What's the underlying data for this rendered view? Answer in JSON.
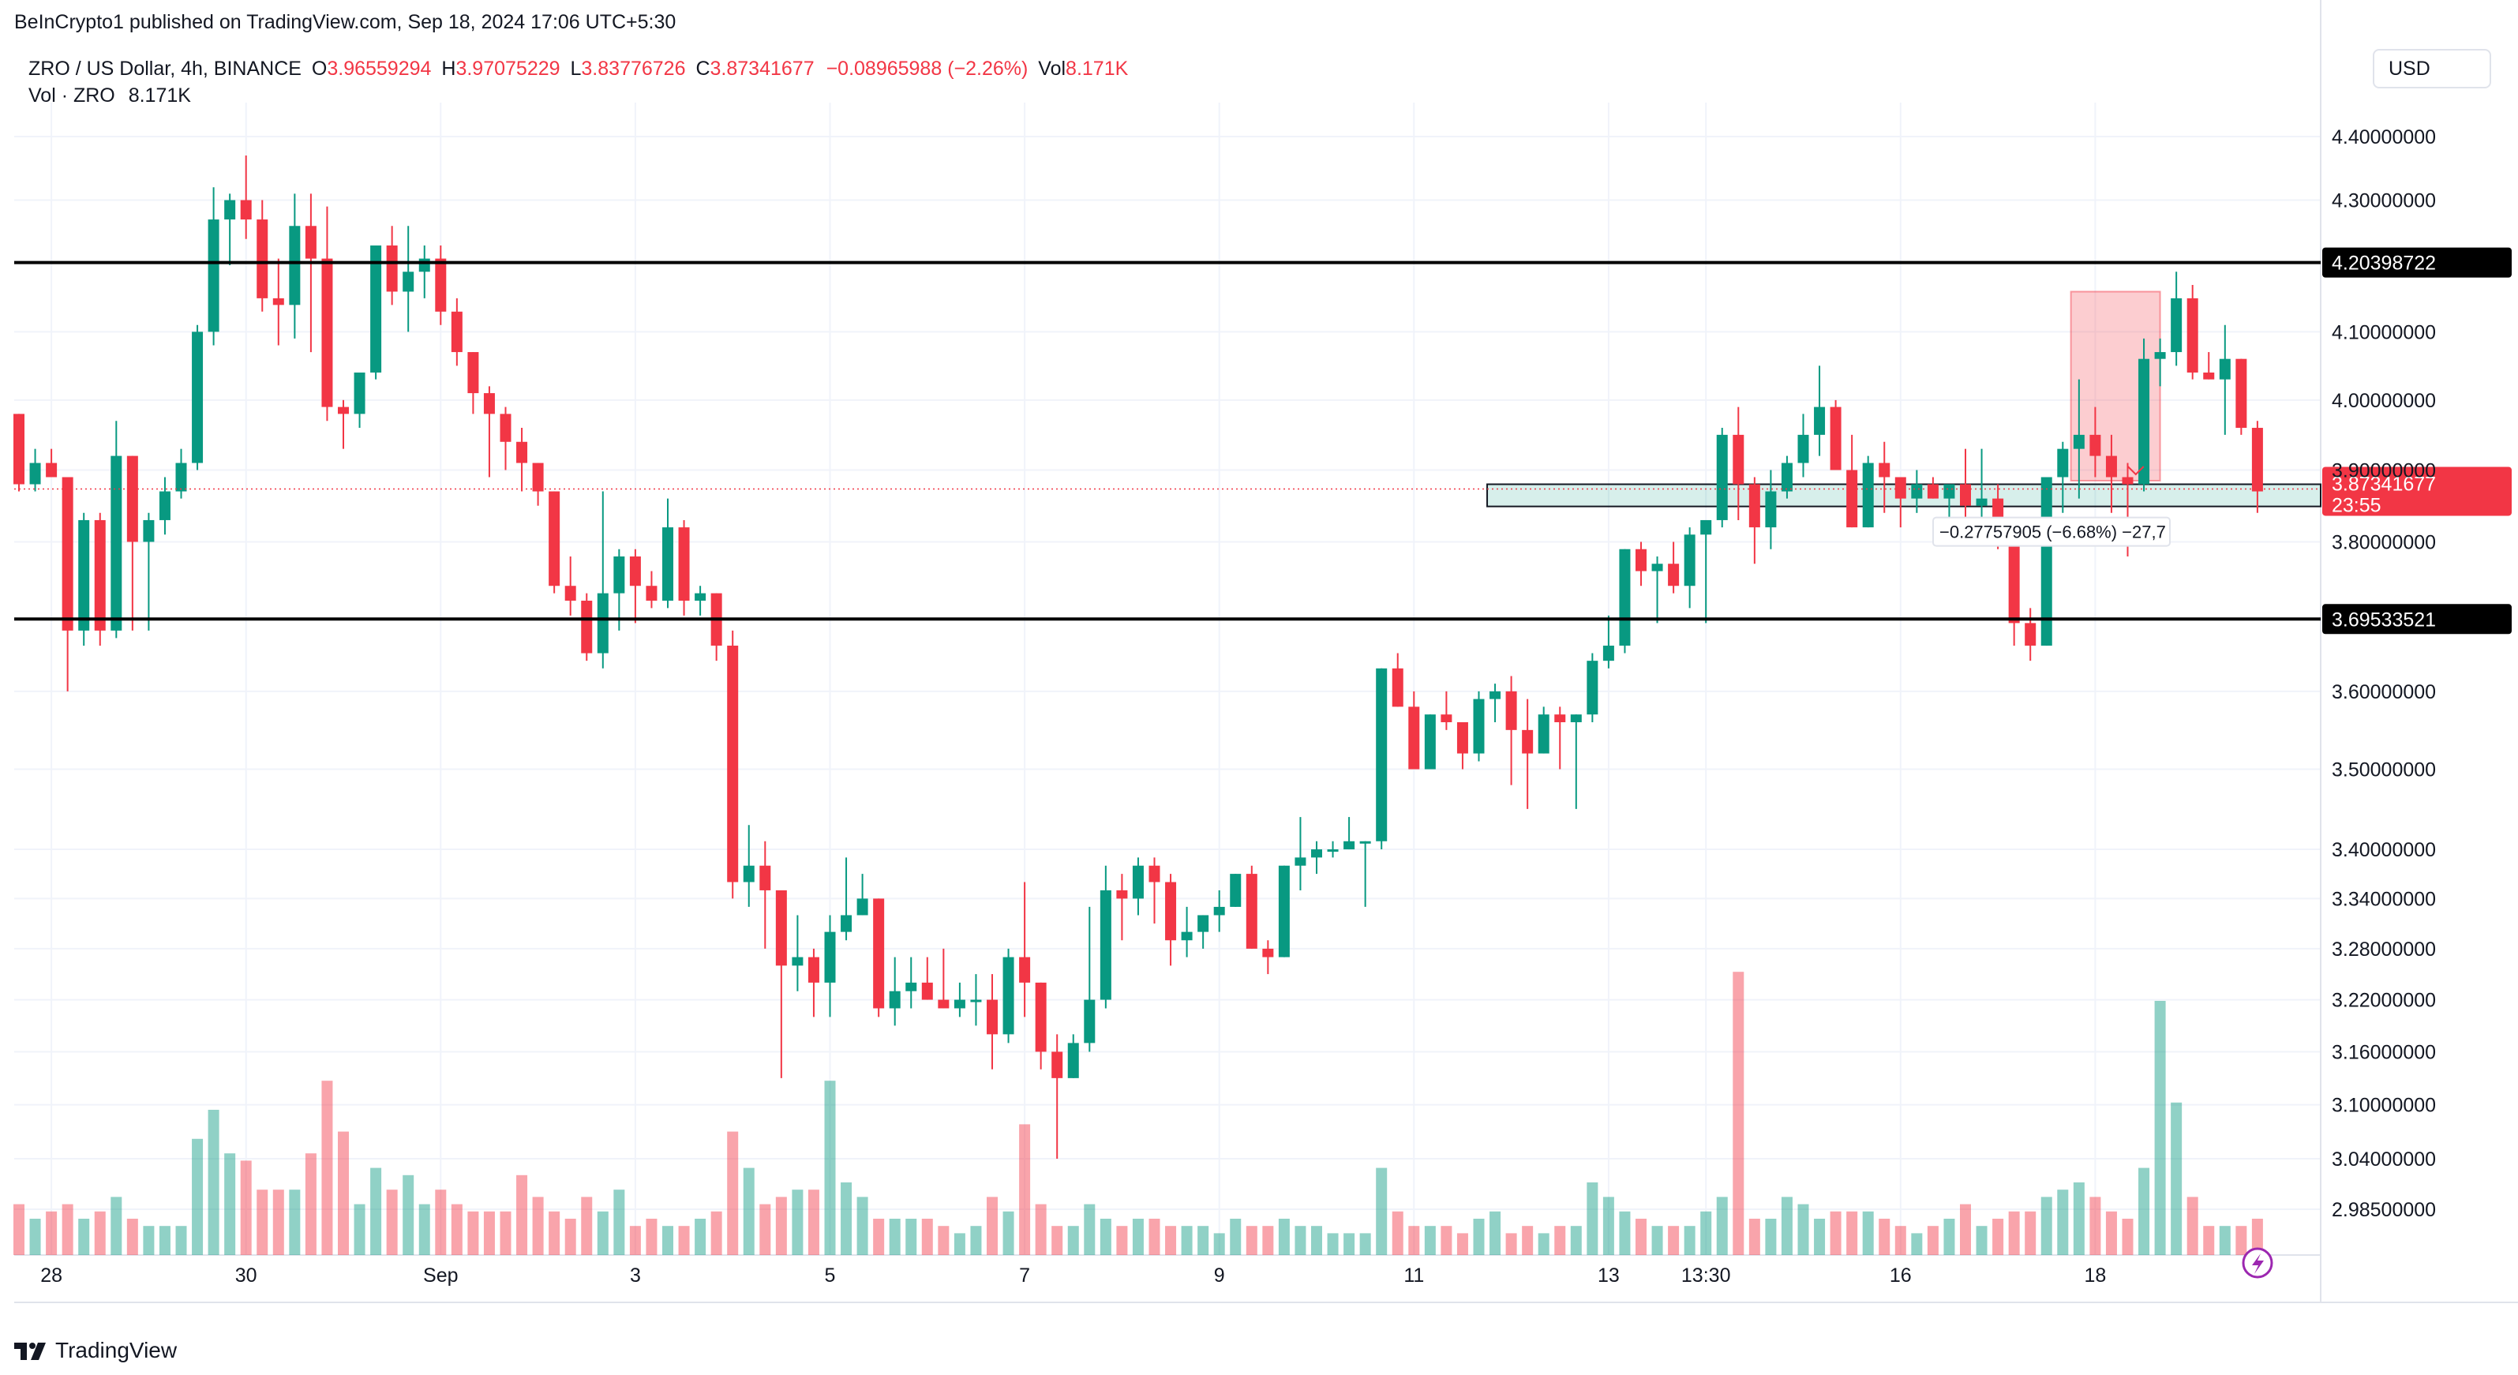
{
  "publisher": "BeInCrypto1 published on TradingView.com, Sep 18, 2024 17:06 UTC+5:30",
  "legend": {
    "symbol": "ZRO / US Dollar, 4h, BINANCE",
    "o_label": "O",
    "o": "3.96559294",
    "h_label": "H",
    "h": "3.97075229",
    "l_label": "L",
    "l": "3.83776726",
    "c_label": "C",
    "c": "3.87341677",
    "change": "−0.08965988 (−2.26%)",
    "vol_label": "Vol",
    "vol": "8.171K",
    "vol_row_label": "Vol · ZRO",
    "vol_row_value": "8.171K"
  },
  "currency": "USD",
  "brand": "TradingView",
  "chart_data": {
    "type": "candlestick",
    "symbol": "ZRO / US Dollar",
    "interval": "4h",
    "exchange": "BINANCE",
    "y_scale": "log",
    "ylim": [
      2.95,
      4.45
    ],
    "y_ticks": [
      "4.40000000",
      "4.30000000",
      "4.10000000",
      "4.00000000",
      "3.90000000",
      "3.80000000",
      "3.60000000",
      "3.50000000",
      "3.40000000",
      "3.34000000",
      "3.28000000",
      "3.22000000",
      "3.16000000",
      "3.10000000",
      "3.04000000",
      "2.98500000"
    ],
    "x_ticks": [
      {
        "label": "28",
        "i": 2
      },
      {
        "label": "30",
        "i": 14
      },
      {
        "label": "Sep",
        "i": 26
      },
      {
        "label": "3",
        "i": 38
      },
      {
        "label": "5",
        "i": 50
      },
      {
        "label": "7",
        "i": 62
      },
      {
        "label": "9",
        "i": 74
      },
      {
        "label": "11",
        "i": 86
      },
      {
        "label": "13",
        "i": 98
      },
      {
        "label": "13:30",
        "i": 104
      },
      {
        "label": "16",
        "i": 116
      },
      {
        "label": "18",
        "i": 128
      }
    ],
    "horizontal_lines": [
      {
        "price": 4.20398722,
        "label": "4.20398722"
      },
      {
        "price": 3.69533521,
        "label": "3.69533521"
      }
    ],
    "last_price": {
      "value": "3.87341677",
      "countdown": "23:55"
    },
    "support_zone": {
      "from_i": 91,
      "low": 3.849,
      "high": 3.88
    },
    "position": {
      "from_i": 126.5,
      "to_i": 132,
      "top": 4.16,
      "bottom": 3.885
    },
    "measure_label": "−0.27757905 (−6.68%) −27,7",
    "bars": [
      [
        3.98,
        3.98,
        3.87,
        3.88,
        0.7
      ],
      [
        3.88,
        3.93,
        3.87,
        3.91,
        0.5
      ],
      [
        3.91,
        3.93,
        3.89,
        3.89,
        0.6
      ],
      [
        3.89,
        3.89,
        3.6,
        3.68,
        0.7
      ],
      [
        3.68,
        3.84,
        3.66,
        3.83,
        0.5
      ],
      [
        3.83,
        3.84,
        3.66,
        3.68,
        0.6
      ],
      [
        3.68,
        3.97,
        3.67,
        3.92,
        0.8
      ],
      [
        3.92,
        3.92,
        3.68,
        3.8,
        0.5
      ],
      [
        3.8,
        3.84,
        3.68,
        3.83,
        0.4
      ],
      [
        3.83,
        3.89,
        3.81,
        3.87,
        0.4
      ],
      [
        3.87,
        3.93,
        3.86,
        3.91,
        0.4
      ],
      [
        3.91,
        4.11,
        3.9,
        4.1,
        1.6
      ],
      [
        4.1,
        4.32,
        4.08,
        4.27,
        2.0
      ],
      [
        4.27,
        4.31,
        4.2,
        4.3,
        1.4
      ],
      [
        4.3,
        4.37,
        4.24,
        4.27,
        1.3
      ],
      [
        4.27,
        4.3,
        4.13,
        4.15,
        0.9
      ],
      [
        4.15,
        4.21,
        4.08,
        4.14,
        0.9
      ],
      [
        4.14,
        4.31,
        4.09,
        4.26,
        0.9
      ],
      [
        4.26,
        4.31,
        4.07,
        4.21,
        1.4
      ],
      [
        4.21,
        4.29,
        3.97,
        3.99,
        2.4
      ],
      [
        3.99,
        4.0,
        3.93,
        3.98,
        1.7
      ],
      [
        3.98,
        4.03,
        3.96,
        4.04,
        0.7
      ],
      [
        4.04,
        4.23,
        4.03,
        4.23,
        1.2
      ],
      [
        4.23,
        4.26,
        4.14,
        4.16,
        0.9
      ],
      [
        4.16,
        4.26,
        4.1,
        4.19,
        1.1
      ],
      [
        4.19,
        4.23,
        4.15,
        4.21,
        0.7
      ],
      [
        4.21,
        4.23,
        4.11,
        4.13,
        0.9
      ],
      [
        4.13,
        4.15,
        4.05,
        4.07,
        0.7
      ],
      [
        4.07,
        4.07,
        3.98,
        4.01,
        0.6
      ],
      [
        4.01,
        4.02,
        3.89,
        3.98,
        0.6
      ],
      [
        3.98,
        3.99,
        3.9,
        3.94,
        0.6
      ],
      [
        3.94,
        3.96,
        3.87,
        3.91,
        1.1
      ],
      [
        3.91,
        3.91,
        3.85,
        3.87,
        0.8
      ],
      [
        3.87,
        3.87,
        3.73,
        3.74,
        0.6
      ],
      [
        3.74,
        3.78,
        3.7,
        3.72,
        0.5
      ],
      [
        3.72,
        3.73,
        3.64,
        3.65,
        0.8
      ],
      [
        3.65,
        3.87,
        3.63,
        3.73,
        0.6
      ],
      [
        3.73,
        3.79,
        3.68,
        3.78,
        0.9
      ],
      [
        3.78,
        3.79,
        3.69,
        3.74,
        0.4
      ],
      [
        3.74,
        3.76,
        3.71,
        3.72,
        0.5
      ],
      [
        3.72,
        3.86,
        3.71,
        3.82,
        0.4
      ],
      [
        3.82,
        3.83,
        3.7,
        3.72,
        0.4
      ],
      [
        3.72,
        3.74,
        3.7,
        3.73,
        0.5
      ],
      [
        3.73,
        3.73,
        3.64,
        3.66,
        0.6
      ],
      [
        3.66,
        3.68,
        3.34,
        3.36,
        1.7
      ],
      [
        3.36,
        3.43,
        3.33,
        3.38,
        1.2
      ],
      [
        3.38,
        3.41,
        3.28,
        3.35,
        0.7
      ],
      [
        3.35,
        3.35,
        3.13,
        3.26,
        0.8
      ],
      [
        3.26,
        3.32,
        3.23,
        3.27,
        0.9
      ],
      [
        3.27,
        3.28,
        3.2,
        3.24,
        0.9
      ],
      [
        3.24,
        3.32,
        3.2,
        3.3,
        2.4
      ],
      [
        3.3,
        3.39,
        3.29,
        3.32,
        1.0
      ],
      [
        3.32,
        3.37,
        3.32,
        3.34,
        0.8
      ],
      [
        3.34,
        3.34,
        3.2,
        3.21,
        0.5
      ],
      [
        3.21,
        3.27,
        3.19,
        3.23,
        0.5
      ],
      [
        3.23,
        3.27,
        3.21,
        3.24,
        0.5
      ],
      [
        3.24,
        3.27,
        3.22,
        3.22,
        0.5
      ],
      [
        3.22,
        3.28,
        3.21,
        3.21,
        0.4
      ],
      [
        3.21,
        3.24,
        3.2,
        3.22,
        0.3
      ],
      [
        3.22,
        3.25,
        3.19,
        3.22,
        0.4
      ],
      [
        3.22,
        3.25,
        3.14,
        3.18,
        0.8
      ],
      [
        3.18,
        3.28,
        3.17,
        3.27,
        0.6
      ],
      [
        3.27,
        3.36,
        3.2,
        3.24,
        1.8
      ],
      [
        3.24,
        3.24,
        3.14,
        3.16,
        0.7
      ],
      [
        3.16,
        3.18,
        3.04,
        3.13,
        0.4
      ],
      [
        3.13,
        3.18,
        3.13,
        3.17,
        0.4
      ],
      [
        3.17,
        3.33,
        3.16,
        3.22,
        0.7
      ],
      [
        3.22,
        3.38,
        3.21,
        3.35,
        0.5
      ],
      [
        3.35,
        3.37,
        3.29,
        3.34,
        0.4
      ],
      [
        3.34,
        3.39,
        3.32,
        3.38,
        0.5
      ],
      [
        3.38,
        3.39,
        3.31,
        3.36,
        0.5
      ],
      [
        3.36,
        3.37,
        3.26,
        3.29,
        0.4
      ],
      [
        3.29,
        3.33,
        3.27,
        3.3,
        0.4
      ],
      [
        3.3,
        3.32,
        3.28,
        3.32,
        0.4
      ],
      [
        3.32,
        3.35,
        3.3,
        3.33,
        0.3
      ],
      [
        3.33,
        3.37,
        3.33,
        3.37,
        0.5
      ],
      [
        3.37,
        3.38,
        3.29,
        3.28,
        0.4
      ],
      [
        3.28,
        3.29,
        3.25,
        3.27,
        0.4
      ],
      [
        3.27,
        3.38,
        3.27,
        3.38,
        0.5
      ],
      [
        3.38,
        3.44,
        3.35,
        3.39,
        0.4
      ],
      [
        3.39,
        3.41,
        3.37,
        3.4,
        0.4
      ],
      [
        3.4,
        3.41,
        3.39,
        3.4,
        0.3
      ],
      [
        3.4,
        3.44,
        3.4,
        3.41,
        0.3
      ],
      [
        3.41,
        3.41,
        3.33,
        3.41,
        0.3
      ],
      [
        3.41,
        3.63,
        3.4,
        3.63,
        1.2
      ],
      [
        3.63,
        3.65,
        3.61,
        3.58,
        0.6
      ],
      [
        3.58,
        3.6,
        3.51,
        3.5,
        0.4
      ],
      [
        3.5,
        3.57,
        3.5,
        3.57,
        0.4
      ],
      [
        3.57,
        3.6,
        3.55,
        3.56,
        0.4
      ],
      [
        3.56,
        3.56,
        3.5,
        3.52,
        0.3
      ],
      [
        3.52,
        3.6,
        3.51,
        3.59,
        0.5
      ],
      [
        3.59,
        3.61,
        3.56,
        3.6,
        0.6
      ],
      [
        3.6,
        3.62,
        3.48,
        3.55,
        0.3
      ],
      [
        3.55,
        3.59,
        3.45,
        3.52,
        0.4
      ],
      [
        3.52,
        3.58,
        3.52,
        3.57,
        0.3
      ],
      [
        3.57,
        3.58,
        3.5,
        3.56,
        0.4
      ],
      [
        3.56,
        3.57,
        3.45,
        3.57,
        0.4
      ],
      [
        3.57,
        3.65,
        3.56,
        3.64,
        1.0
      ],
      [
        3.64,
        3.7,
        3.63,
        3.66,
        0.8
      ],
      [
        3.66,
        3.79,
        3.65,
        3.79,
        0.6
      ],
      [
        3.79,
        3.8,
        3.74,
        3.76,
        0.5
      ],
      [
        3.76,
        3.78,
        3.69,
        3.77,
        0.4
      ],
      [
        3.77,
        3.8,
        3.73,
        3.74,
        0.4
      ],
      [
        3.74,
        3.82,
        3.71,
        3.81,
        0.4
      ],
      [
        3.81,
        3.83,
        3.69,
        3.83,
        0.6
      ],
      [
        3.83,
        3.96,
        3.82,
        3.95,
        0.8
      ],
      [
        3.95,
        3.99,
        3.83,
        3.88,
        3.9
      ],
      [
        3.88,
        3.89,
        3.77,
        3.82,
        0.5
      ],
      [
        3.82,
        3.9,
        3.79,
        3.87,
        0.5
      ],
      [
        3.87,
        3.92,
        3.86,
        3.91,
        0.8
      ],
      [
        3.91,
        3.98,
        3.89,
        3.95,
        0.7
      ],
      [
        3.95,
        4.05,
        3.92,
        3.99,
        0.5
      ],
      [
        3.99,
        4.0,
        3.9,
        3.9,
        0.6
      ],
      [
        3.9,
        3.95,
        3.82,
        3.82,
        0.6
      ],
      [
        3.82,
        3.92,
        3.84,
        3.91,
        0.6
      ],
      [
        3.91,
        3.94,
        3.84,
        3.89,
        0.5
      ],
      [
        3.89,
        3.89,
        3.82,
        3.86,
        0.4
      ],
      [
        3.86,
        3.9,
        3.84,
        3.88,
        0.3
      ],
      [
        3.88,
        3.89,
        3.86,
        3.86,
        0.4
      ],
      [
        3.86,
        3.87,
        3.82,
        3.88,
        0.5
      ],
      [
        3.88,
        3.93,
        3.83,
        3.85,
        0.7
      ],
      [
        3.85,
        3.93,
        3.83,
        3.86,
        0.4
      ],
      [
        3.86,
        3.88,
        3.79,
        3.81,
        0.5
      ],
      [
        3.81,
        3.83,
        3.66,
        3.69,
        0.6
      ],
      [
        3.69,
        3.71,
        3.64,
        3.66,
        0.6
      ],
      [
        3.66,
        3.89,
        3.67,
        3.89,
        0.8
      ],
      [
        3.89,
        3.94,
        3.84,
        3.93,
        0.9
      ],
      [
        3.93,
        4.03,
        3.86,
        3.95,
        1.0
      ],
      [
        3.95,
        3.99,
        3.89,
        3.92,
        0.8
      ],
      [
        3.92,
        3.95,
        3.84,
        3.89,
        0.6
      ],
      [
        3.89,
        3.91,
        3.78,
        3.88,
        0.5
      ],
      [
        3.88,
        4.09,
        3.87,
        4.06,
        1.2
      ],
      [
        4.06,
        4.09,
        4.02,
        4.07,
        3.5
      ],
      [
        4.07,
        4.19,
        4.05,
        4.15,
        2.1
      ],
      [
        4.15,
        4.17,
        4.03,
        4.04,
        0.8
      ],
      [
        4.04,
        4.07,
        4.03,
        4.03,
        0.4
      ],
      [
        4.03,
        4.11,
        3.95,
        4.06,
        0.4
      ],
      [
        4.06,
        4.06,
        3.95,
        3.96,
        0.4
      ],
      [
        3.96,
        3.97,
        3.84,
        3.87,
        0.5
      ]
    ]
  }
}
